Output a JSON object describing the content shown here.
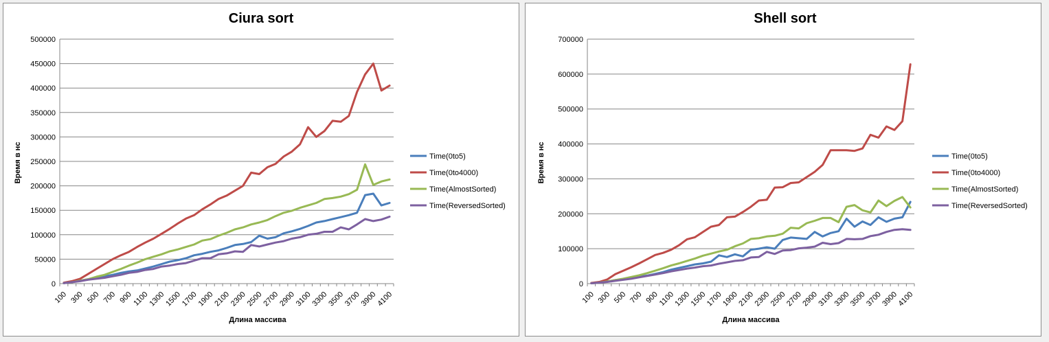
{
  "chart_data": [
    {
      "type": "line",
      "title": "Ciura sort",
      "xlabel": "Длина массива",
      "ylabel": "Время в нс",
      "x": [
        100,
        200,
        300,
        400,
        500,
        600,
        700,
        800,
        900,
        1000,
        1100,
        1200,
        1300,
        1400,
        1500,
        1600,
        1700,
        1800,
        1900,
        2000,
        2100,
        2200,
        2300,
        2400,
        2500,
        2600,
        2700,
        2800,
        2900,
        3000,
        3100,
        3200,
        3300,
        3400,
        3500,
        3600,
        3700,
        3800,
        3900,
        4000,
        4100
      ],
      "x_tick_labels": [
        "100",
        "300",
        "500",
        "700",
        "900",
        "1100",
        "1300",
        "1500",
        "1700",
        "1900",
        "2100",
        "2300",
        "2500",
        "2700",
        "2900",
        "3100",
        "3300",
        "3500",
        "3700",
        "3900",
        "4100"
      ],
      "y_ticks": [
        0,
        50000,
        100000,
        150000,
        200000,
        250000,
        300000,
        350000,
        400000,
        450000,
        500000
      ],
      "ylim": [
        0,
        500000
      ],
      "grid": true,
      "legend_position": "right",
      "series": [
        {
          "name": "Time(0to5)",
          "color": "#4a7ebb",
          "values": [
            1000,
            3000,
            6000,
            9000,
            12000,
            15000,
            18000,
            22000,
            25000,
            27000,
            31000,
            35000,
            40000,
            45000,
            48000,
            52000,
            58000,
            61000,
            65000,
            68000,
            73000,
            79000,
            81000,
            85000,
            98000,
            92000,
            95000,
            103000,
            107000,
            112000,
            118000,
            125000,
            128000,
            132000,
            136000,
            140000,
            145000,
            181000,
            184000,
            160000,
            165000
          ]
        },
        {
          "name": "Time(0to4000)",
          "color": "#be4b48",
          "values": [
            2000,
            5000,
            10000,
            20000,
            30000,
            40000,
            50000,
            58000,
            65000,
            75000,
            84000,
            92000,
            102000,
            112000,
            123000,
            133000,
            140000,
            152000,
            162000,
            173000,
            180000,
            190000,
            200000,
            227000,
            224000,
            238000,
            245000,
            260000,
            270000,
            285000,
            320000,
            300000,
            312000,
            333000,
            331000,
            343000,
            392000,
            428000,
            450000,
            395000,
            405000
          ]
        },
        {
          "name": "Time(AlmostSorted)",
          "color": "#98b954",
          "values": [
            1000,
            3000,
            6000,
            9000,
            14000,
            18000,
            24000,
            30000,
            37000,
            43000,
            50000,
            55000,
            60000,
            66000,
            70000,
            75000,
            80000,
            88000,
            91000,
            98000,
            104000,
            111000,
            115000,
            121000,
            125000,
            130000,
            138000,
            145000,
            149000,
            155000,
            160000,
            165000,
            173000,
            175000,
            178000,
            183000,
            192000,
            244000,
            202000,
            209000,
            213000
          ]
        },
        {
          "name": "Time(ReversedSorted)",
          "color": "#7d60a0",
          "values": [
            1000,
            3000,
            5000,
            8000,
            10000,
            12000,
            15000,
            18000,
            22000,
            24000,
            28000,
            30000,
            35000,
            37000,
            40000,
            42000,
            47000,
            52000,
            52000,
            60000,
            62000,
            66000,
            65000,
            79000,
            76000,
            80000,
            84000,
            87000,
            92000,
            95000,
            100000,
            102000,
            106000,
            106000,
            115000,
            111000,
            121000,
            132000,
            128000,
            131000,
            137000
          ]
        }
      ]
    },
    {
      "type": "line",
      "title": "Shell sort",
      "xlabel": "Длина массива",
      "ylabel": "Время в нс",
      "x": [
        100,
        200,
        300,
        400,
        500,
        600,
        700,
        800,
        900,
        1000,
        1100,
        1200,
        1300,
        1400,
        1500,
        1600,
        1700,
        1800,
        1900,
        2000,
        2100,
        2200,
        2300,
        2400,
        2500,
        2600,
        2700,
        2800,
        2900,
        3000,
        3100,
        3200,
        3300,
        3400,
        3500,
        3600,
        3700,
        3800,
        3900,
        4000,
        4100
      ],
      "x_tick_labels": [
        "100",
        "300",
        "500",
        "700",
        "900",
        "1100",
        "1300",
        "1500",
        "1700",
        "1900",
        "2100",
        "2300",
        "2500",
        "2700",
        "2900",
        "3100",
        "3300",
        "3500",
        "3700",
        "3900",
        "4100"
      ],
      "y_ticks": [
        0,
        100000,
        200000,
        300000,
        400000,
        500000,
        600000,
        700000
      ],
      "ylim": [
        0,
        700000
      ],
      "grid": true,
      "legend_position": "right",
      "series": [
        {
          "name": "Time(0to5)",
          "color": "#4a7ebb",
          "values": [
            1000,
            3000,
            6000,
            10000,
            13000,
            17000,
            20000,
            23000,
            28000,
            33000,
            40000,
            45000,
            50000,
            55000,
            58000,
            63000,
            81000,
            76000,
            84000,
            78000,
            97000,
            100000,
            104000,
            100000,
            125000,
            132000,
            130000,
            128000,
            148000,
            135000,
            145000,
            150000,
            186000,
            163000,
            178000,
            168000,
            190000,
            177000,
            186000,
            190000,
            234000
          ]
        },
        {
          "name": "Time(0to4000)",
          "color": "#be4b48",
          "values": [
            2000,
            5000,
            12000,
            27000,
            37000,
            47000,
            58000,
            70000,
            82000,
            88000,
            97000,
            110000,
            127000,
            133000,
            148000,
            163000,
            168000,
            190000,
            192000,
            205000,
            220000,
            238000,
            240000,
            275000,
            276000,
            288000,
            290000,
            305000,
            320000,
            340000,
            382000,
            382000,
            382000,
            380000,
            387000,
            426000,
            418000,
            450000,
            440000,
            465000,
            628000
          ]
        },
        {
          "name": "Time(AlmostSorted)",
          "color": "#98b954",
          "values": [
            1000,
            3000,
            6000,
            10000,
            14000,
            19000,
            24000,
            30000,
            37000,
            44000,
            52000,
            58000,
            65000,
            72000,
            80000,
            86000,
            92000,
            97000,
            107000,
            115000,
            128000,
            130000,
            135000,
            137000,
            143000,
            160000,
            158000,
            173000,
            180000,
            188000,
            188000,
            176000,
            220000,
            225000,
            210000,
            204000,
            238000,
            222000,
            237000,
            248000,
            218000
          ]
        },
        {
          "name": "Time(ReversedSorted)",
          "color": "#7d60a0",
          "values": [
            1000,
            3000,
            5000,
            8000,
            11000,
            14000,
            18000,
            22000,
            26000,
            30000,
            35000,
            39000,
            43000,
            46000,
            50000,
            52000,
            57000,
            61000,
            65000,
            67000,
            75000,
            76000,
            91000,
            85000,
            95000,
            96000,
            101000,
            103000,
            106000,
            117000,
            113000,
            116000,
            128000,
            127000,
            128000,
            136000,
            140000,
            148000,
            154000,
            156000,
            154000
          ]
        }
      ]
    }
  ]
}
